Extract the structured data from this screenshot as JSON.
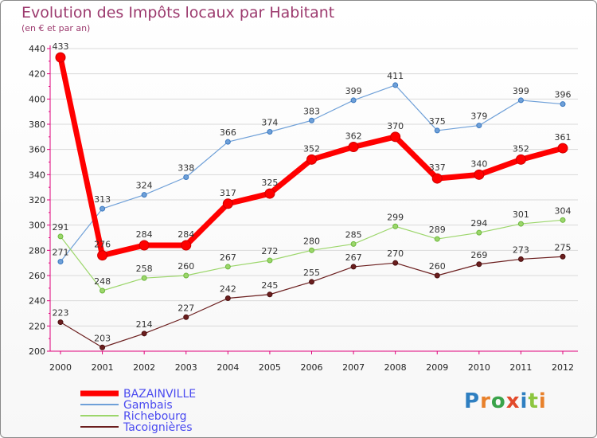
{
  "header": {
    "title": "Evolution des Impôts locaux par Habitant",
    "subtitle": "(en € et par an)"
  },
  "logo": {
    "text": "Proxiti",
    "colors": [
      "#2f7fc1",
      "#e8812b",
      "#3aa34a",
      "#e24a2b",
      "#2f7fc1",
      "#8cc63f",
      "#e8812b"
    ]
  },
  "colors": {
    "axis": "#e0007a",
    "grid": "#d9d9d9"
  },
  "chart_data": {
    "type": "line",
    "title": "Evolution des Impôts locaux par Habitant",
    "subtitle": "(en € et par an)",
    "xlabel": "",
    "ylabel": "",
    "x": [
      "2000",
      "2001",
      "2002",
      "2003",
      "2004",
      "2005",
      "2006",
      "2007",
      "2008",
      "2009",
      "2010",
      "2011",
      "2012"
    ],
    "ylim": [
      200,
      440
    ],
    "yticks": [
      200,
      220,
      240,
      260,
      280,
      300,
      320,
      340,
      360,
      380,
      400,
      420,
      440
    ],
    "grid": true,
    "legend": "bottom-left",
    "series": [
      {
        "name": "BAZAINVILLE",
        "color": "#ff0000",
        "width": 7,
        "marker": 6,
        "values": [
          433,
          276,
          284,
          284,
          317,
          325,
          352,
          362,
          370,
          337,
          340,
          352,
          361
        ]
      },
      {
        "name": "Gambais",
        "color": "#6fa0d8",
        "width": 1.2,
        "marker": 3,
        "values": [
          271,
          313,
          324,
          338,
          366,
          374,
          383,
          399,
          411,
          375,
          379,
          399,
          396
        ]
      },
      {
        "name": "Richebourg",
        "color": "#9cd66b",
        "width": 1.2,
        "marker": 3,
        "values": [
          291,
          248,
          258,
          260,
          267,
          272,
          280,
          285,
          299,
          289,
          294,
          301,
          304
        ]
      },
      {
        "name": "Tacoignières",
        "color": "#6b1e1e",
        "width": 1.2,
        "marker": 3,
        "values": [
          223,
          203,
          214,
          227,
          242,
          245,
          255,
          267,
          270,
          260,
          269,
          273,
          275
        ]
      }
    ]
  }
}
